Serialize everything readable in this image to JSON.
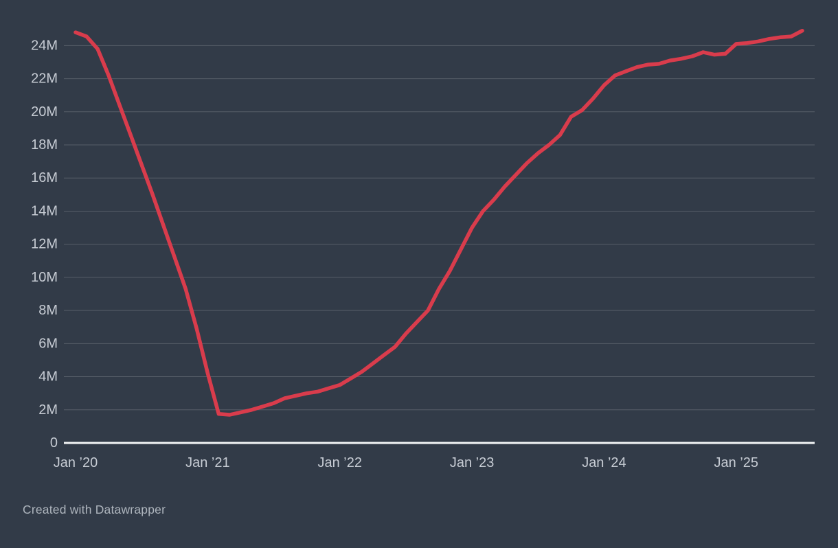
{
  "footer": {
    "credit": "Created with Datawrapper"
  },
  "chart_data": {
    "type": "line",
    "frequency": "monthly",
    "start_month": "Jan 2020",
    "end_month": "Jul 2025",
    "unit": "M",
    "title": "",
    "xlabel": "",
    "ylabel": "",
    "ylim": [
      0,
      25.6
    ],
    "grid": "horizontal",
    "legend": "none",
    "values": [
      24.8,
      24.55,
      23.8,
      22.2,
      20.4,
      18.6,
      16.8,
      15.0,
      13.1,
      11.2,
      9.3,
      6.9,
      4.2,
      1.75,
      1.7,
      1.85,
      2.0,
      2.2,
      2.4,
      2.7,
      2.85,
      3.0,
      3.1,
      3.3,
      3.5,
      3.9,
      4.3,
      4.8,
      5.3,
      5.8,
      6.6,
      7.3,
      8.0,
      9.3,
      10.4,
      11.7,
      13.0,
      14.0,
      14.7,
      15.5,
      16.2,
      16.9,
      17.5,
      18.0,
      18.6,
      19.7,
      20.1,
      20.8,
      21.6,
      22.2,
      22.45,
      22.7,
      22.85,
      22.9,
      23.1,
      23.2,
      23.35,
      23.6,
      23.45,
      23.5,
      24.1,
      24.15,
      24.25,
      24.4,
      24.5,
      24.55,
      24.9
    ],
    "y_ticks": [
      {
        "value": 0,
        "label": "0"
      },
      {
        "value": 2,
        "label": "2M"
      },
      {
        "value": 4,
        "label": "4M"
      },
      {
        "value": 6,
        "label": "6M"
      },
      {
        "value": 8,
        "label": "8M"
      },
      {
        "value": 10,
        "label": "10M"
      },
      {
        "value": 12,
        "label": "12M"
      },
      {
        "value": 14,
        "label": "14M"
      },
      {
        "value": 16,
        "label": "16M"
      },
      {
        "value": 18,
        "label": "18M"
      },
      {
        "value": 20,
        "label": "20M"
      },
      {
        "value": 22,
        "label": "22M"
      },
      {
        "value": 24,
        "label": "24M"
      }
    ],
    "x_ticks": [
      {
        "month_index": 0,
        "label": "Jan ’20"
      },
      {
        "month_index": 12,
        "label": "Jan ’21"
      },
      {
        "month_index": 24,
        "label": "Jan ’22"
      },
      {
        "month_index": 36,
        "label": "Jan ’23"
      },
      {
        "month_index": 48,
        "label": "Jan ’24"
      },
      {
        "month_index": 60,
        "label": "Jan ’25"
      }
    ],
    "colors": {
      "background": "#323b48",
      "line": "#d93c4c",
      "gridline": "rgba(255,255,255,0.18)",
      "zero_line": "#f4f5f6",
      "tick_label": "#c7ccd4"
    }
  }
}
